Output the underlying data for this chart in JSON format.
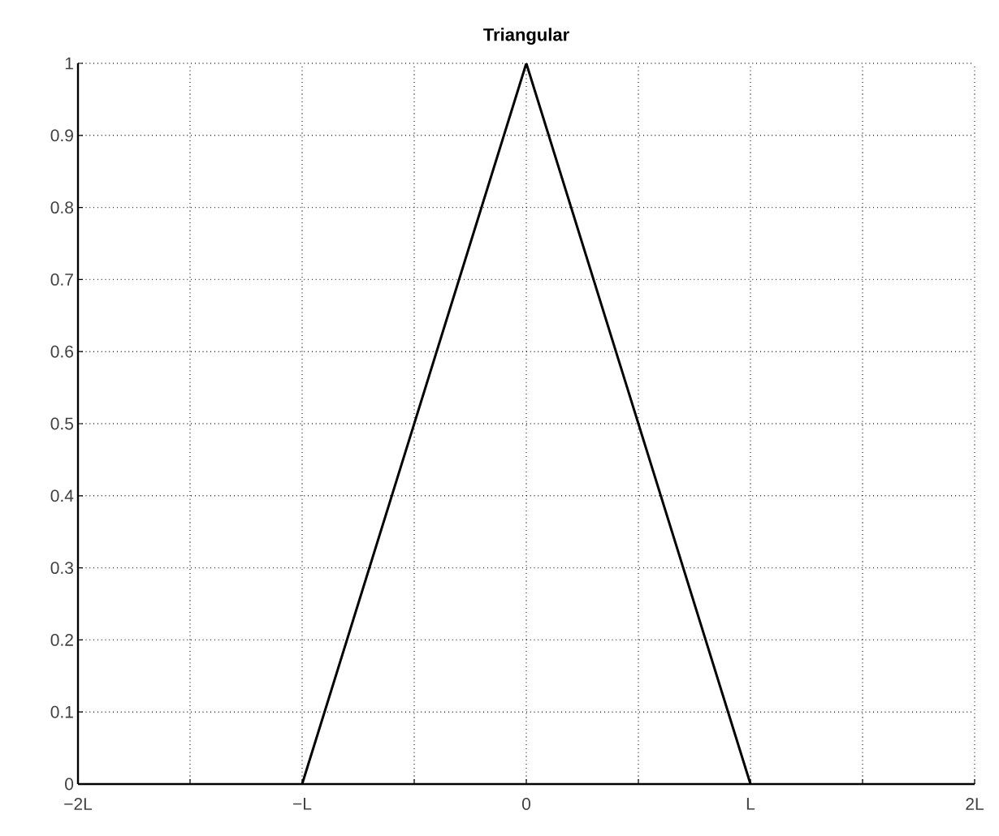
{
  "chart_data": {
    "type": "line",
    "title": "Triangular",
    "x": [
      -1,
      0,
      1
    ],
    "values": [
      0,
      1,
      0
    ],
    "color": "#000000",
    "marker": "none",
    "line_style": "solid",
    "xlim": [
      -2,
      2
    ],
    "ylim": [
      0,
      1
    ],
    "xticks": [
      {
        "value": -2,
        "label": "−2L"
      },
      {
        "value": -1.5,
        "label": null
      },
      {
        "value": -1,
        "label": "−L"
      },
      {
        "value": -0.5,
        "label": null
      },
      {
        "value": 0,
        "label": "0"
      },
      {
        "value": 0.5,
        "label": null
      },
      {
        "value": 1,
        "label": "L"
      },
      {
        "value": 1.5,
        "label": null
      },
      {
        "value": 2,
        "label": "2L"
      }
    ],
    "yticks": [
      0,
      0.1,
      0.2,
      0.3,
      0.4,
      0.5,
      0.6,
      0.7,
      0.8,
      0.9,
      1
    ],
    "grid": true
  }
}
